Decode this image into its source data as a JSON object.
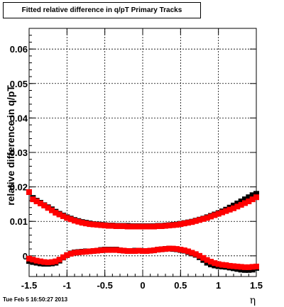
{
  "title": "Fitted relative difference in q/pT  Primary Tracks",
  "timestamp": "Tue Feb  5 16:50:27 2013",
  "chart_data": {
    "type": "scatter",
    "xlabel": "η",
    "ylabel": "relative difference in q/pT",
    "xlim": [
      -1.5,
      1.5
    ],
    "ylim": [
      -0.006,
      0.066
    ],
    "x_ticks": [
      -1.5,
      -1,
      -0.5,
      0,
      0.5,
      1,
      1.5
    ],
    "x_tick_labels": [
      "-1.5",
      "-1",
      "-0.5",
      "0",
      "0.5",
      "1",
      "1.5"
    ],
    "y_ticks": [
      0,
      0.01,
      0.02,
      0.03,
      0.04,
      0.05,
      0.06
    ],
    "y_tick_labels": [
      "0",
      "0.01",
      "0.02",
      "0.03",
      "0.04",
      "0.05",
      "0.06"
    ],
    "grid": true,
    "x": [
      -1.5,
      -1.45,
      -1.4,
      -1.35,
      -1.3,
      -1.25,
      -1.2,
      -1.15,
      -1.1,
      -1.05,
      -1.0,
      -0.95,
      -0.9,
      -0.85,
      -0.8,
      -0.75,
      -0.7,
      -0.65,
      -0.6,
      -0.55,
      -0.5,
      -0.45,
      -0.4,
      -0.35,
      -0.3,
      -0.25,
      -0.2,
      -0.15,
      -0.1,
      -0.05,
      0.0,
      0.05,
      0.1,
      0.15,
      0.2,
      0.25,
      0.3,
      0.35,
      0.4,
      0.45,
      0.5,
      0.55,
      0.6,
      0.65,
      0.7,
      0.75,
      0.8,
      0.85,
      0.9,
      0.95,
      1.0,
      1.05,
      1.1,
      1.15,
      1.2,
      1.25,
      1.3,
      1.35,
      1.4,
      1.45,
      1.5
    ],
    "series": [
      {
        "color": "#000000",
        "values": [
          0.0185,
          0.0168,
          0.016,
          0.0154,
          0.0147,
          0.0141,
          0.0135,
          0.0128,
          0.0122,
          0.0117,
          0.0112,
          0.0108,
          0.0104,
          0.0101,
          0.0098,
          0.0096,
          0.0094,
          0.0092,
          0.0091,
          0.009,
          0.0089,
          0.0088,
          0.0088,
          0.0087,
          0.0087,
          0.0087,
          0.0087,
          0.0086,
          0.0086,
          0.0086,
          0.0086,
          0.0086,
          0.0086,
          0.0086,
          0.0087,
          0.0087,
          0.0088,
          0.0089,
          0.009,
          0.0091,
          0.0093,
          0.0095,
          0.0097,
          0.0099,
          0.0102,
          0.0105,
          0.0108,
          0.0112,
          0.0116,
          0.012,
          0.0124,
          0.0129,
          0.0134,
          0.014,
          0.0146,
          0.0152,
          0.0158,
          0.0164,
          0.017,
          0.0176,
          0.018
        ]
      },
      {
        "color": "#ff0000",
        "values": [
          0.0185,
          0.0164,
          0.0158,
          0.0152,
          0.0146,
          0.0139,
          0.0132,
          0.0125,
          0.012,
          0.0115,
          0.011,
          0.0106,
          0.0102,
          0.0099,
          0.0096,
          0.0094,
          0.0092,
          0.0091,
          0.009,
          0.0089,
          0.0088,
          0.0087,
          0.0087,
          0.0086,
          0.0086,
          0.0086,
          0.0085,
          0.0085,
          0.0085,
          0.0085,
          0.0085,
          0.0085,
          0.0085,
          0.0085,
          0.0086,
          0.0086,
          0.0087,
          0.0088,
          0.0089,
          0.009,
          0.0092,
          0.0094,
          0.0096,
          0.0098,
          0.0101,
          0.0104,
          0.0107,
          0.011,
          0.0114,
          0.0118,
          0.0122,
          0.0126,
          0.013,
          0.0134,
          0.0138,
          0.0143,
          0.0148,
          0.0153,
          0.0158,
          0.0164,
          0.017
        ]
      },
      {
        "color": "#000000",
        "values": [
          -0.0015,
          -0.0018,
          -0.002,
          -0.0022,
          -0.0023,
          -0.0023,
          -0.0022,
          -0.002,
          -0.0014,
          -0.0005,
          0.0002,
          0.0007,
          0.001,
          0.0011,
          0.0012,
          0.0013,
          0.0013,
          0.0014,
          0.0015,
          0.0017,
          0.0018,
          0.0018,
          0.0018,
          0.0018,
          0.0016,
          0.0015,
          0.0014,
          0.0014,
          0.0015,
          0.0015,
          0.0014,
          0.0014,
          0.0015,
          0.0016,
          0.0018,
          0.0019,
          0.002,
          0.0021,
          0.002,
          0.0019,
          0.0017,
          0.0015,
          0.0011,
          0.0007,
          0.0003,
          -0.0004,
          -0.0012,
          -0.002,
          -0.0025,
          -0.0028,
          -0.003,
          -0.0031,
          -0.0032,
          -0.0034,
          -0.0036,
          -0.0038,
          -0.004,
          -0.0041,
          -0.0041,
          -0.004,
          -0.0035
        ]
      },
      {
        "color": "#ff0000",
        "values": [
          -0.0008,
          -0.0011,
          -0.0014,
          -0.0016,
          -0.0018,
          -0.0019,
          -0.0018,
          -0.0016,
          -0.0011,
          -0.0004,
          0.0002,
          0.0006,
          0.0009,
          0.001,
          0.0011,
          0.0012,
          0.0013,
          0.0014,
          0.0015,
          0.0016,
          0.0017,
          0.0017,
          0.0017,
          0.0017,
          0.0016,
          0.0015,
          0.0014,
          0.0014,
          0.0014,
          0.0015,
          0.0014,
          0.0014,
          0.0015,
          0.0016,
          0.0018,
          0.0019,
          0.002,
          0.0021,
          0.0021,
          0.002,
          0.0018,
          0.0016,
          0.0013,
          0.0009,
          0.0005,
          0.0,
          -0.0006,
          -0.0012,
          -0.0017,
          -0.0021,
          -0.0024,
          -0.0026,
          -0.0027,
          -0.0029,
          -0.003,
          -0.0031,
          -0.0032,
          -0.0033,
          -0.0033,
          -0.0032,
          -0.0031
        ]
      }
    ]
  }
}
